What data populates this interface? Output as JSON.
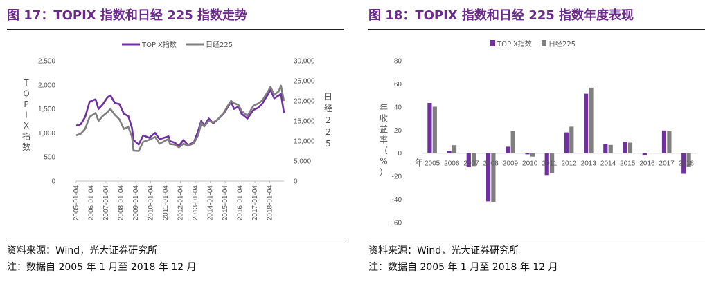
{
  "left": {
    "title": "图 17：TOPIX 指数和日经 225 指数走势",
    "source": "资料来源：Wind，光大证券研究所",
    "note": "注：数据自 2005 年 1 月至 2018 年 12 月",
    "chart_data": {
      "type": "line",
      "legend": "top",
      "y_label_left": [
        "T",
        "O",
        "P",
        "I",
        "X",
        "指",
        "数"
      ],
      "y_label_right": [
        "日",
        "经",
        "2",
        "2",
        "5"
      ],
      "ylim_left": [
        0,
        2500
      ],
      "ylim_right": [
        0,
        30000
      ],
      "y_ticks_left": [
        "0",
        "500",
        "1,000",
        "1,500",
        "2,000",
        "2,500"
      ],
      "y_ticks_right": [
        "0",
        "5,000",
        "10,000",
        "15,000",
        "20,000",
        "25,000",
        "30,000"
      ],
      "x_ticks": [
        "2005-01-04",
        "2006-01-04",
        "2007-01-04",
        "2008-01-04",
        "2009-01-04",
        "2010-01-04",
        "2011-01-04",
        "2012-01-04",
        "2013-01-04",
        "2014-01-04",
        "2015-01-04",
        "2016-01-04",
        "2017-01-04",
        "2018-01-04"
      ],
      "x_range": [
        2005.0,
        2018.95
      ],
      "series": [
        {
          "name": "TOPIX指数",
          "axis": "left",
          "color": "#7030a0",
          "x": [
            2005.0,
            2005.3,
            2005.6,
            2005.9,
            2006.3,
            2006.5,
            2006.8,
            2007.1,
            2007.3,
            2007.6,
            2007.9,
            2008.2,
            2008.5,
            2008.75,
            2008.85,
            2009.2,
            2009.5,
            2009.9,
            2010.3,
            2010.6,
            2010.9,
            2011.2,
            2011.3,
            2011.6,
            2011.9,
            2012.2,
            2012.5,
            2012.9,
            2013.2,
            2013.4,
            2013.6,
            2013.9,
            2014.2,
            2014.5,
            2014.9,
            2015.2,
            2015.4,
            2015.6,
            2015.9,
            2016.1,
            2016.5,
            2016.9,
            2017.2,
            2017.5,
            2017.9,
            2018.05,
            2018.3,
            2018.6,
            2018.75,
            2018.95
          ],
          "y": [
            1150,
            1180,
            1330,
            1650,
            1700,
            1500,
            1600,
            1740,
            1780,
            1620,
            1600,
            1400,
            1350,
            1100,
            850,
            760,
            950,
            900,
            1000,
            870,
            900,
            930,
            830,
            800,
            730,
            850,
            750,
            800,
            1050,
            1250,
            1150,
            1300,
            1200,
            1280,
            1400,
            1550,
            1650,
            1500,
            1550,
            1400,
            1300,
            1480,
            1520,
            1610,
            1810,
            1900,
            1720,
            1780,
            1810,
            1420
          ]
        },
        {
          "name": "日经225",
          "axis": "right",
          "color": "#7f7f7f",
          "x": [
            2005.0,
            2005.3,
            2005.6,
            2005.9,
            2006.3,
            2006.5,
            2006.8,
            2007.1,
            2007.3,
            2007.6,
            2007.9,
            2008.2,
            2008.5,
            2008.75,
            2008.85,
            2009.2,
            2009.5,
            2009.9,
            2010.3,
            2010.6,
            2010.9,
            2011.2,
            2011.3,
            2011.6,
            2011.9,
            2012.2,
            2012.5,
            2012.9,
            2013.2,
            2013.4,
            2013.6,
            2013.9,
            2014.2,
            2014.5,
            2014.9,
            2015.2,
            2015.4,
            2015.6,
            2015.9,
            2016.1,
            2016.5,
            2016.9,
            2017.2,
            2017.5,
            2017.9,
            2018.05,
            2018.3,
            2018.6,
            2018.75,
            2018.95
          ],
          "y": [
            11400,
            11800,
            13000,
            16000,
            17000,
            15000,
            16300,
            17200,
            18000,
            16500,
            15400,
            13000,
            13500,
            11000,
            7600,
            7500,
            9800,
            10300,
            11000,
            9300,
            9900,
            10500,
            9200,
            9100,
            8400,
            9300,
            8800,
            9400,
            11500,
            14500,
            13600,
            15000,
            14600,
            15400,
            17000,
            18900,
            20000,
            19400,
            19000,
            17500,
            16300,
            18800,
            19300,
            20100,
            22500,
            23500,
            21500,
            22400,
            23800,
            20000
          ]
        }
      ]
    }
  },
  "right": {
    "title": "图 18：TOPIX 指数和日经 225 指数年度表现",
    "source": "资料来源：Wind，光大证券研究所",
    "note": "注：数据自 2005 年 1 月至 2018 年 12 月",
    "chart_data": {
      "type": "bar",
      "legend": "top",
      "y_label": [
        "年",
        "收",
        "益",
        "率",
        "（",
        "%",
        "）"
      ],
      "ylim": [
        -60,
        80
      ],
      "y_ticks": [
        "-60",
        "-40",
        "-20",
        "0",
        "20",
        "40",
        "60",
        "80"
      ],
      "x_label": "年",
      "categories": [
        "2005",
        "2006",
        "2007",
        "2008",
        "2009",
        "2010",
        "2011",
        "2012",
        "2013",
        "2014",
        "2015",
        "2016",
        "2017",
        "2018"
      ],
      "series": [
        {
          "name": "TOPIX指数",
          "color": "#7030a0",
          "values": [
            43.5,
            2.0,
            -12.0,
            -41.7,
            5.6,
            -1.0,
            -18.9,
            18.0,
            51.5,
            8.1,
            9.9,
            -1.9,
            19.7,
            -17.8
          ]
        },
        {
          "name": "日经225",
          "color": "#7f7f7f",
          "values": [
            40.2,
            6.9,
            -11.1,
            -42.1,
            19.0,
            -3.0,
            -17.3,
            22.9,
            56.7,
            7.1,
            9.1,
            0.4,
            19.1,
            -12.1
          ]
        }
      ]
    }
  }
}
